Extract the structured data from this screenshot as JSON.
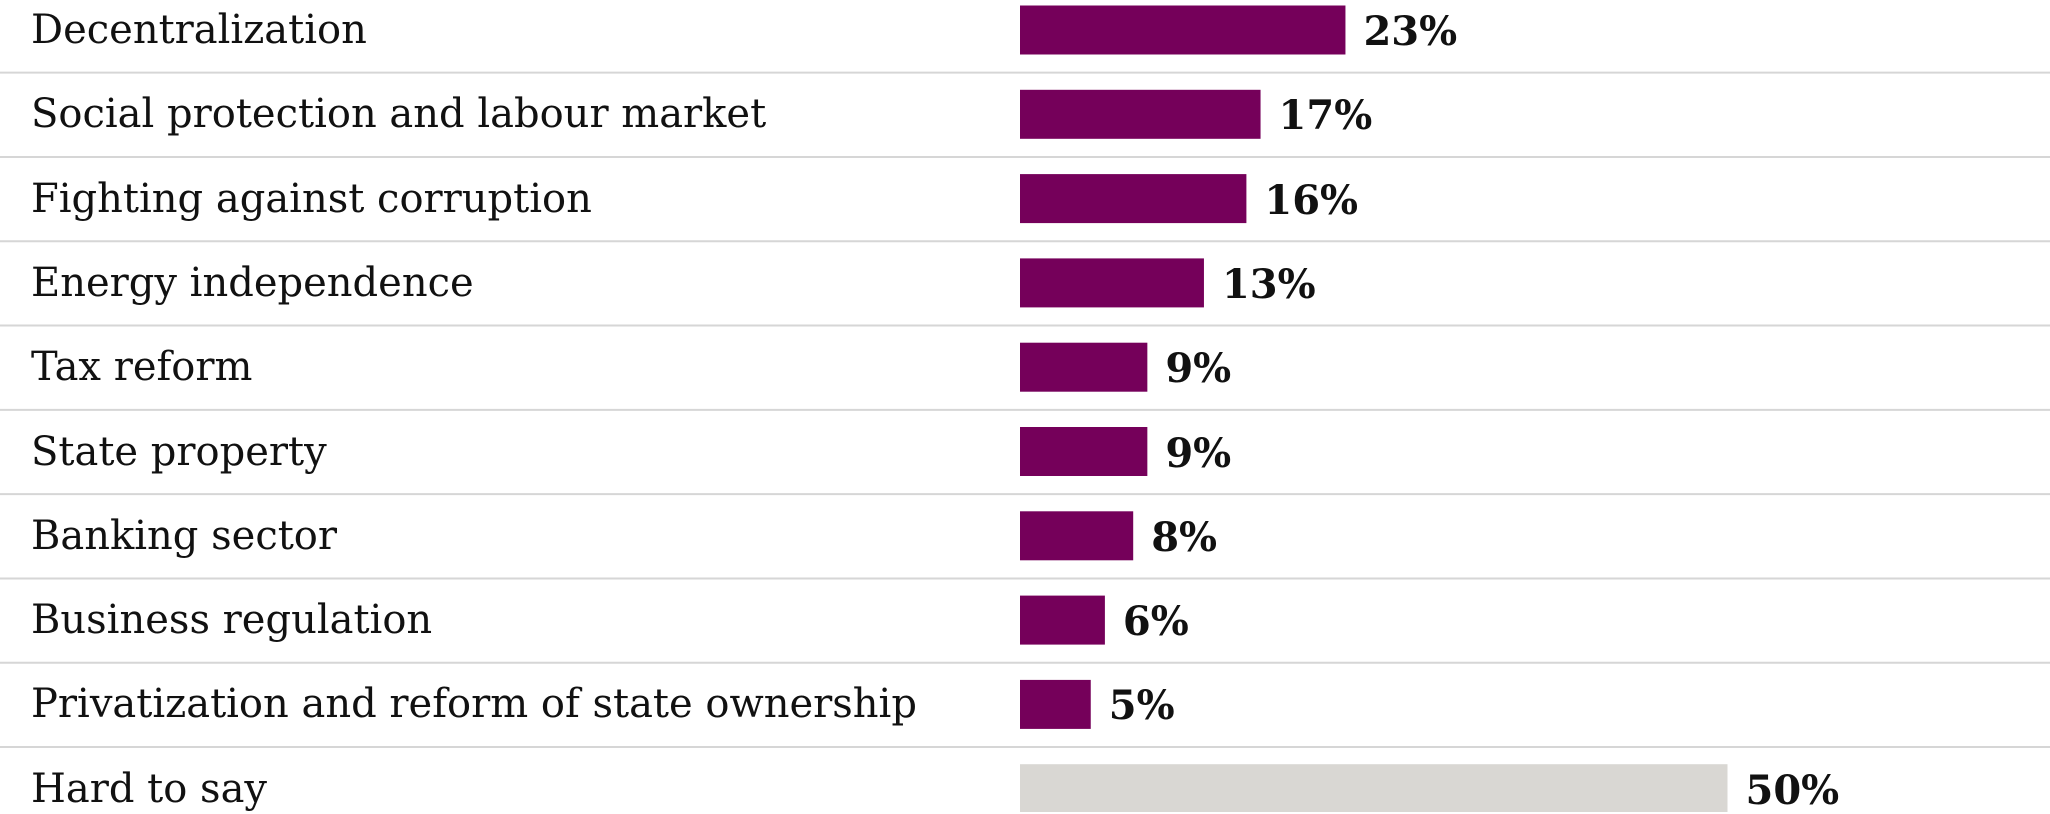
{
  "chart_data": {
    "type": "bar",
    "orientation": "horizontal",
    "categories": [
      "Decentralization",
      "Social protection and labour market",
      "Fighting against corruption",
      "Energy independence",
      "Tax reform",
      "State property",
      "Banking sector",
      "Business regulation",
      "Privatization and reform of state ownership",
      "Hard to say"
    ],
    "values": [
      23,
      17,
      16,
      13,
      9,
      9,
      8,
      6,
      5,
      50
    ],
    "value_labels": [
      "23%",
      "17%",
      "16%",
      "13%",
      "9%",
      "9%",
      "8%",
      "6%",
      "5%",
      "50%"
    ],
    "bar_colors": [
      "#75005a",
      "#75005a",
      "#75005a",
      "#75005a",
      "#75005a",
      "#75005a",
      "#75005a",
      "#75005a",
      "#75005a",
      "#d9d7d3"
    ],
    "value_unit": "%",
    "xlim": [
      0,
      100
    ],
    "grid": false,
    "row_dividers": true,
    "divider_color": "#d6d6d6"
  }
}
